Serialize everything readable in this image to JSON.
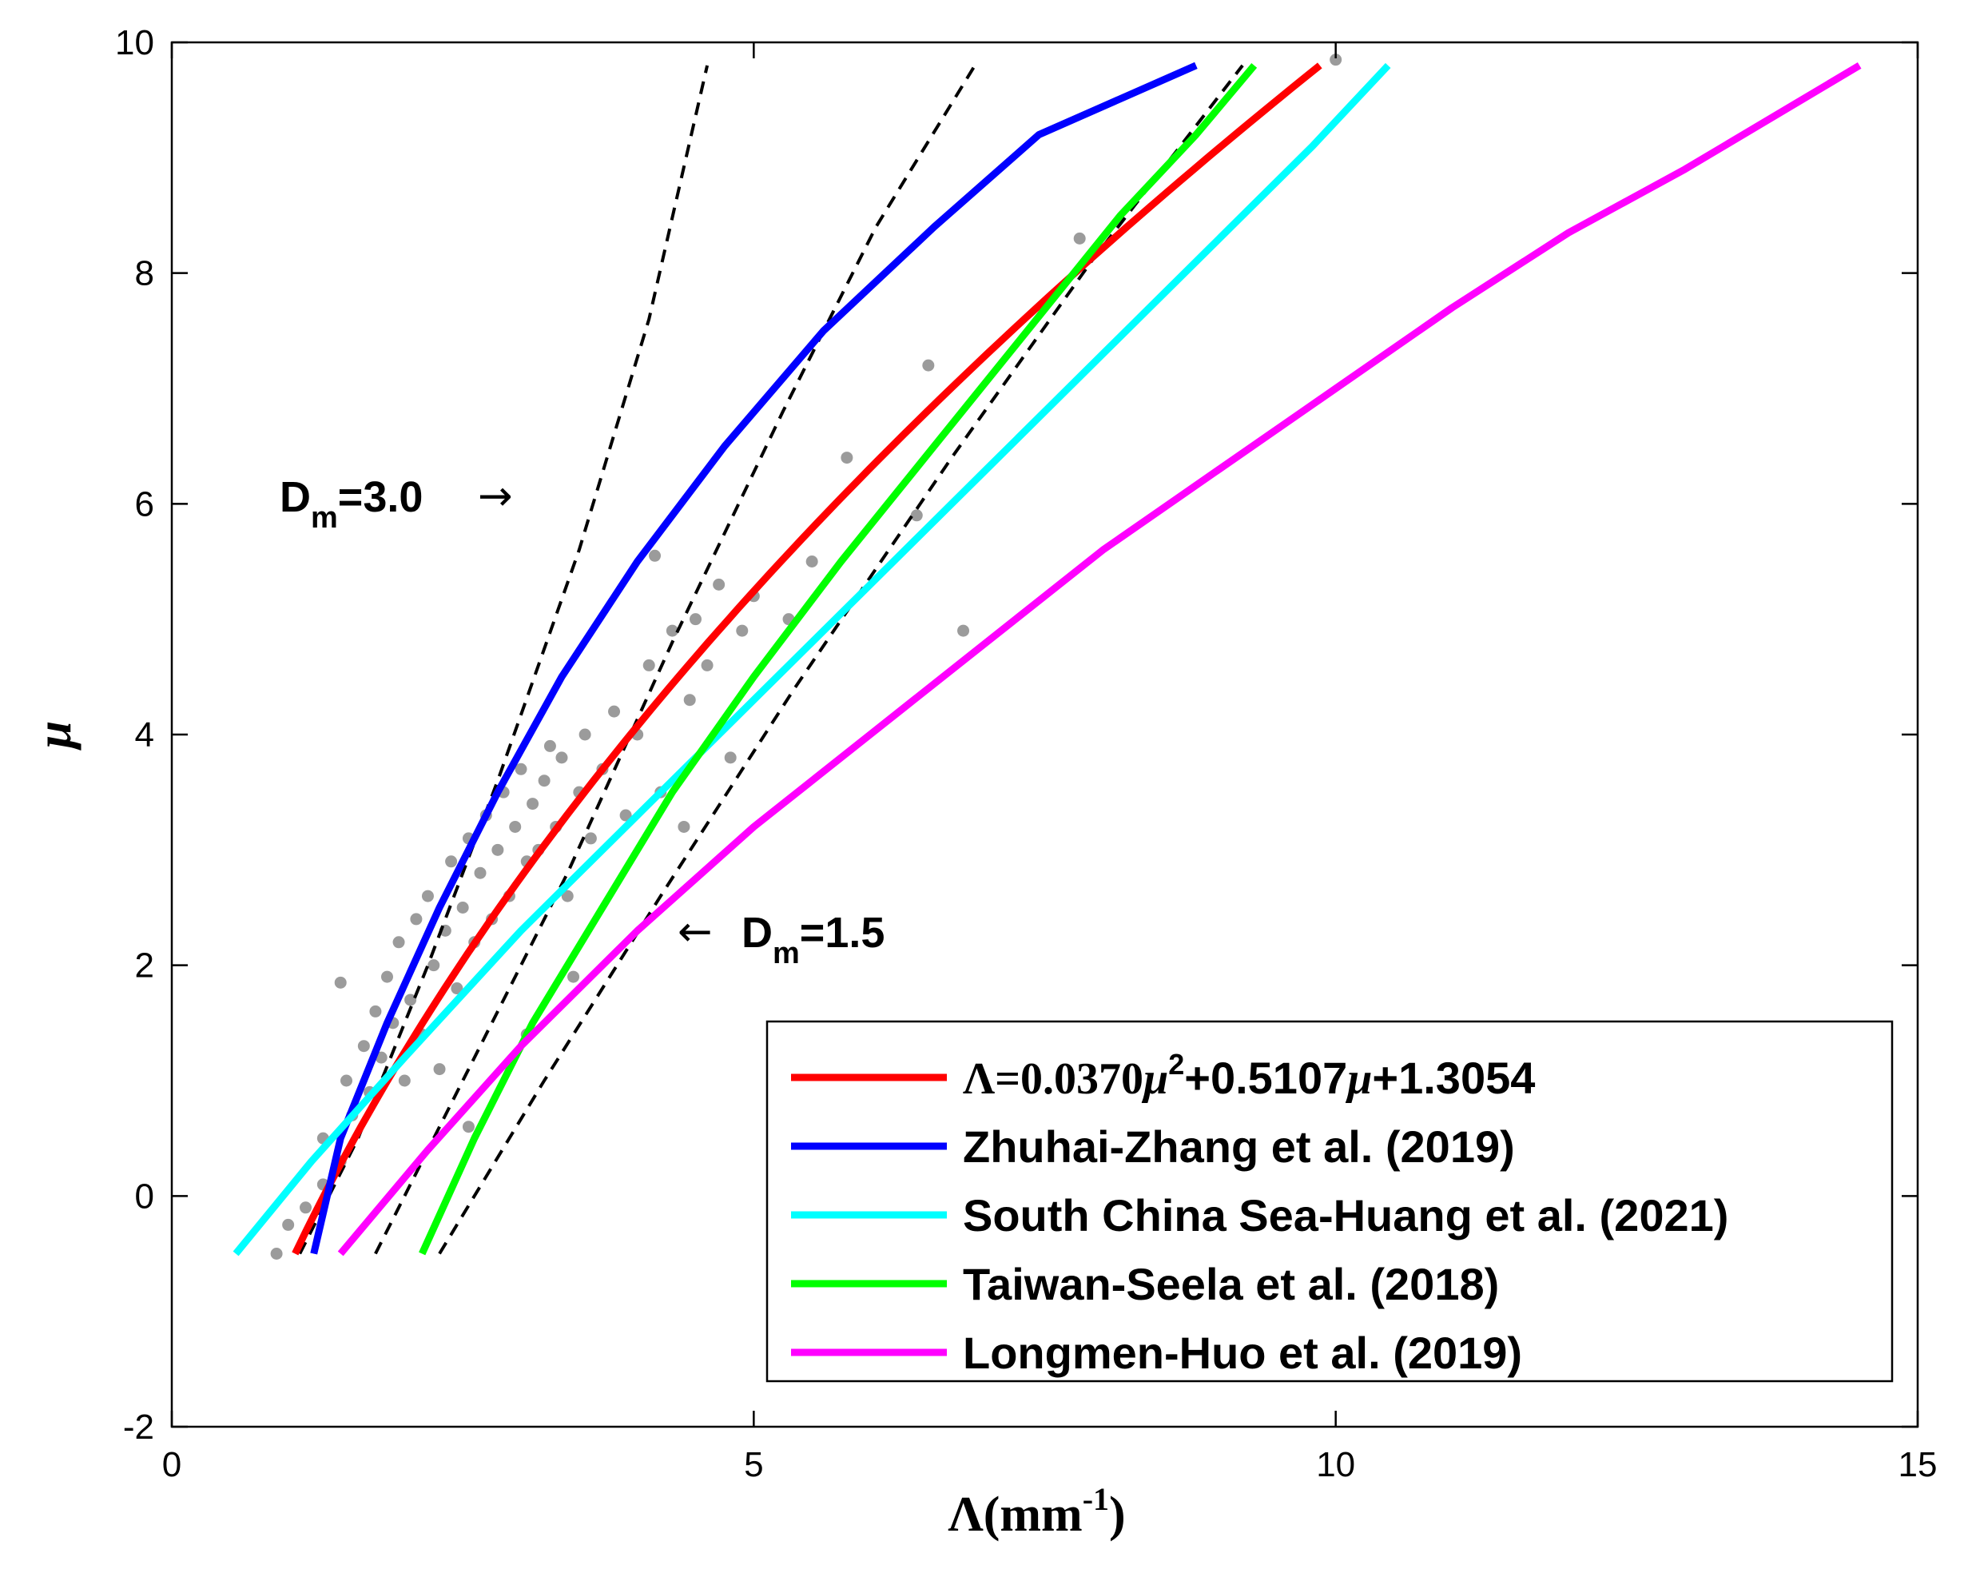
{
  "chart_data": {
    "type": "line",
    "xlabel_base": "Λ(mm",
    "xlabel_sup": "-1",
    "xlabel_end": ")",
    "ylabel": "μ",
    "xlim": [
      0,
      15
    ],
    "ylim": [
      -2,
      10
    ],
    "xticks": [
      0,
      5,
      10,
      15
    ],
    "xtick_labels": [
      "0",
      "5",
      "10",
      "15"
    ],
    "yticks": [
      -2,
      0,
      2,
      4,
      6,
      8,
      10
    ],
    "ytick_labels": [
      "-2",
      "0",
      "2",
      "4",
      "6",
      "8",
      "10"
    ],
    "series": [
      {
        "name": "Λ=0.0370μ²+0.5107μ+1.3054",
        "color": "#ff0000",
        "mu_range": [
          -0.5,
          9.8
        ],
        "formula": "fit"
      },
      {
        "name": "Zhuhai-Zhang et al. (2019)",
        "color": "#0000ff",
        "points": [
          [
            1.22,
            -0.5
          ],
          [
            1.45,
            0.5
          ],
          [
            1.85,
            1.5
          ],
          [
            2.3,
            2.5
          ],
          [
            2.8,
            3.5
          ],
          [
            3.35,
            4.5
          ],
          [
            4.0,
            5.5
          ],
          [
            4.75,
            6.5
          ],
          [
            5.6,
            7.5
          ],
          [
            6.55,
            8.4
          ],
          [
            7.45,
            9.2
          ],
          [
            8.8,
            9.8
          ]
        ]
      },
      {
        "name": "South China Sea-Huang et al. (2021)",
        "color": "#00ffff",
        "points": [
          [
            0.55,
            -0.5
          ],
          [
            1.2,
            0.3
          ],
          [
            2.0,
            1.2
          ],
          [
            3.0,
            2.3
          ],
          [
            4.0,
            3.3
          ],
          [
            5.0,
            4.3
          ],
          [
            6.0,
            5.3
          ],
          [
            7.0,
            6.3
          ],
          [
            8.0,
            7.3
          ],
          [
            9.0,
            8.3
          ],
          [
            9.8,
            9.1
          ],
          [
            10.45,
            9.8
          ]
        ]
      },
      {
        "name": "Taiwan-Seela et al. (2018)",
        "color": "#00ff00",
        "points": [
          [
            2.15,
            -0.5
          ],
          [
            2.6,
            0.5
          ],
          [
            3.1,
            1.5
          ],
          [
            3.7,
            2.5
          ],
          [
            4.3,
            3.5
          ],
          [
            5.0,
            4.5
          ],
          [
            5.75,
            5.5
          ],
          [
            6.55,
            6.5
          ],
          [
            7.35,
            7.5
          ],
          [
            8.15,
            8.5
          ],
          [
            8.8,
            9.2
          ],
          [
            9.3,
            9.8
          ]
        ]
      },
      {
        "name": "Longmen-Huo et al. (2019)",
        "color": "#ff00ff",
        "points": [
          [
            1.45,
            -0.5
          ],
          [
            2.2,
            0.4
          ],
          [
            3.0,
            1.3
          ],
          [
            4.0,
            2.3
          ],
          [
            5.0,
            3.2
          ],
          [
            6.0,
            4.0
          ],
          [
            7.0,
            4.8
          ],
          [
            8.0,
            5.6
          ],
          [
            9.0,
            6.3
          ],
          [
            10.0,
            7.0
          ],
          [
            11.0,
            7.7
          ],
          [
            12.0,
            8.35
          ],
          [
            13.0,
            8.9
          ],
          [
            14.5,
            9.8
          ]
        ]
      }
    ],
    "reference_lines": [
      {
        "name": "Dm=3.0",
        "style": "dashed",
        "color": "#000000",
        "points": [
          [
            1.1,
            -0.5
          ],
          [
            1.6,
            0.5
          ],
          [
            2.2,
            2.0
          ],
          [
            2.8,
            3.6
          ],
          [
            3.5,
            5.6
          ],
          [
            4.1,
            7.6
          ],
          [
            4.6,
            9.8
          ]
        ]
      },
      {
        "name": "Dm=3.0 right",
        "style": "dashed",
        "color": "#000000",
        "points": [
          [
            1.75,
            -0.5
          ],
          [
            2.5,
            1.0
          ],
          [
            3.4,
            2.8
          ],
          [
            4.3,
            4.8
          ],
          [
            5.25,
            6.8
          ],
          [
            6.05,
            8.4
          ],
          [
            6.9,
            9.8
          ]
        ]
      },
      {
        "name": "Dm=1.5",
        "style": "dashed",
        "color": "#000000",
        "points": [
          [
            2.3,
            -0.5
          ],
          [
            3.2,
            1.0
          ],
          [
            4.2,
            2.6
          ],
          [
            5.35,
            4.4
          ],
          [
            6.7,
            6.4
          ],
          [
            7.9,
            8.1
          ],
          [
            9.2,
            9.8
          ]
        ]
      }
    ],
    "scatter": {
      "color": "#9b9b9b",
      "points": [
        [
          0.9,
          -0.5
        ],
        [
          1.0,
          -0.25
        ],
        [
          1.15,
          -0.1
        ],
        [
          1.3,
          0.5
        ],
        [
          1.45,
          0.3
        ],
        [
          1.5,
          1.0
        ],
        [
          1.55,
          0.7
        ],
        [
          1.65,
          1.3
        ],
        [
          1.7,
          0.9
        ],
        [
          1.75,
          1.6
        ],
        [
          1.8,
          1.2
        ],
        [
          1.85,
          1.9
        ],
        [
          1.9,
          1.5
        ],
        [
          1.95,
          2.2
        ],
        [
          2.0,
          1.0
        ],
        [
          2.05,
          1.7
        ],
        [
          2.1,
          2.4
        ],
        [
          2.15,
          1.4
        ],
        [
          2.2,
          2.6
        ],
        [
          2.25,
          2.0
        ],
        [
          2.3,
          1.1
        ],
        [
          2.35,
          2.3
        ],
        [
          2.4,
          2.9
        ],
        [
          2.45,
          1.8
        ],
        [
          2.5,
          2.5
        ],
        [
          2.55,
          3.1
        ],
        [
          2.6,
          2.2
        ],
        [
          2.65,
          2.8
        ],
        [
          2.7,
          3.3
        ],
        [
          2.75,
          2.4
        ],
        [
          2.8,
          3.0
        ],
        [
          2.85,
          3.5
        ],
        [
          2.9,
          2.6
        ],
        [
          2.95,
          3.2
        ],
        [
          3.0,
          3.7
        ],
        [
          3.05,
          2.9
        ],
        [
          3.1,
          3.4
        ],
        [
          3.15,
          3.0
        ],
        [
          3.2,
          3.6
        ],
        [
          3.25,
          3.9
        ],
        [
          3.3,
          3.2
        ],
        [
          3.35,
          3.8
        ],
        [
          3.4,
          2.6
        ],
        [
          3.5,
          3.5
        ],
        [
          3.55,
          4.0
        ],
        [
          3.6,
          3.1
        ],
        [
          3.7,
          3.7
        ],
        [
          3.8,
          4.2
        ],
        [
          3.9,
          3.3
        ],
        [
          4.0,
          4.0
        ],
        [
          4.1,
          4.6
        ],
        [
          4.2,
          3.5
        ],
        [
          4.3,
          4.9
        ],
        [
          4.4,
          3.2
        ],
        [
          4.45,
          4.3
        ],
        [
          4.5,
          5.0
        ],
        [
          4.6,
          4.6
        ],
        [
          4.7,
          5.3
        ],
        [
          4.8,
          3.8
        ],
        [
          4.9,
          4.9
        ],
        [
          5.0,
          5.2
        ],
        [
          5.3,
          5.0
        ],
        [
          5.5,
          5.5
        ],
        [
          5.8,
          6.4
        ],
        [
          6.4,
          5.9
        ],
        [
          6.5,
          7.2
        ],
        [
          6.8,
          4.9
        ],
        [
          7.8,
          8.3
        ],
        [
          10.0,
          9.85
        ],
        [
          1.45,
          1.85
        ],
        [
          1.3,
          0.1
        ],
        [
          4.15,
          5.55
        ],
        [
          2.55,
          0.6
        ],
        [
          3.05,
          1.4
        ],
        [
          3.45,
          1.9
        ]
      ]
    },
    "annotations": [
      {
        "id": "dm30",
        "base": "D",
        "sub": "m",
        "rest": "=3.0",
        "arrow": "→"
      },
      {
        "id": "dm15",
        "base": "D",
        "sub": "m",
        "rest": "=1.5",
        "arrow": "←"
      }
    ]
  }
}
